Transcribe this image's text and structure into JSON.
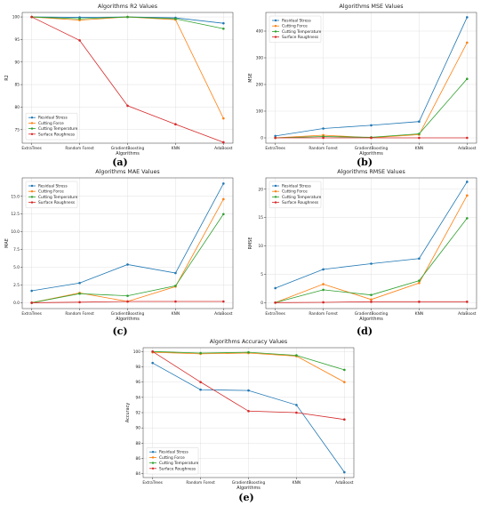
{
  "colors": {
    "s1": "#1f77b4",
    "s2": "#ff7f0e",
    "s3": "#2ca02c",
    "s4": "#d62728"
  },
  "chart_data": [
    {
      "type": "line",
      "caption": "(a)",
      "title": "Algorithms R2 Values",
      "xlabel": "Algorithms",
      "ylabel": "R2",
      "categories": [
        "ExtraTrees",
        "Random Forest",
        "GradientBoosting",
        "KNN",
        "AdaBoost"
      ],
      "ylim": [
        72,
        101
      ],
      "yticks": [
        75,
        80,
        85,
        90,
        95,
        100
      ],
      "yticklabels": [
        "75",
        "80",
        "85",
        "90",
        "95",
        "100"
      ],
      "grid": true,
      "legend": "bottom-left",
      "series": [
        {
          "name": "Residual Stress",
          "values": [
            100,
            99.9,
            100,
            99.8,
            98.6
          ]
        },
        {
          "name": "Cutting Force",
          "values": [
            100,
            99.3,
            100,
            99.4,
            77.5
          ]
        },
        {
          "name": "Cutting Temperature",
          "values": [
            100,
            99.6,
            100,
            99.6,
            97.4
          ]
        },
        {
          "name": "Surface Roughness",
          "values": [
            100,
            94.8,
            80.3,
            76.2,
            72.2
          ]
        }
      ]
    },
    {
      "type": "line",
      "caption": "(b)",
      "title": "Algorithms MSE Values",
      "xlabel": "Algorithms",
      "ylabel": "MSE",
      "categories": [
        "ExtraTrees",
        "Random Forest",
        "GradientBoosting",
        "KNN",
        "AdaBoost"
      ],
      "ylim": [
        -20,
        470
      ],
      "yticks": [
        0,
        100,
        200,
        300,
        400
      ],
      "yticklabels": [
        "0",
        "100",
        "200",
        "300",
        "400"
      ],
      "grid": true,
      "legend": "top-left",
      "series": [
        {
          "name": "Residual Stress",
          "values": [
            7,
            35,
            47,
            61,
            452
          ]
        },
        {
          "name": "Cutting Force",
          "values": [
            0,
            10,
            0.5,
            12,
            357
          ]
        },
        {
          "name": "Cutting Temperature",
          "values": [
            0,
            5,
            2,
            15,
            221
          ]
        },
        {
          "name": "Surface Roughness",
          "values": [
            0,
            0,
            0,
            0,
            0
          ]
        }
      ]
    },
    {
      "type": "line",
      "caption": "(c)",
      "title": "Algorithms MAE Values",
      "xlabel": "Algorithms",
      "ylabel": "MAE",
      "categories": [
        "ExtraTrees",
        "Random Forest",
        "GradientBoosting",
        "KNN",
        "AdaBoost"
      ],
      "ylim": [
        -0.8,
        17.6
      ],
      "yticks": [
        0,
        2.5,
        5,
        7.5,
        10,
        12.5,
        15
      ],
      "yticklabels": [
        "0.0",
        "2.5",
        "5.0",
        "7.5",
        "10.0",
        "12.5",
        "15.0"
      ],
      "grid": true,
      "legend": "top-left",
      "series": [
        {
          "name": "Residual Stress",
          "values": [
            1.7,
            2.8,
            5.4,
            4.2,
            16.8
          ]
        },
        {
          "name": "Cutting Force",
          "values": [
            0.02,
            1.4,
            0.2,
            2.3,
            14.6
          ]
        },
        {
          "name": "Cutting Temperature",
          "values": [
            0.02,
            1.3,
            1.0,
            2.4,
            12.5
          ]
        },
        {
          "name": "Surface Roughness",
          "values": [
            0.02,
            0.1,
            0.2,
            0.2,
            0.2
          ]
        }
      ]
    },
    {
      "type": "line",
      "caption": "(d)",
      "title": "Algorithms RMSE Values",
      "xlabel": "Algorithms",
      "ylabel": "RMSE",
      "categories": [
        "ExtraTrees",
        "Random Forest",
        "GradientBoosting",
        "KNN",
        "AdaBoost"
      ],
      "ylim": [
        -1,
        22
      ],
      "yticks": [
        0,
        5,
        10,
        15,
        20
      ],
      "yticklabels": [
        "0",
        "5",
        "10",
        "15",
        "20"
      ],
      "grid": true,
      "legend": "top-left",
      "series": [
        {
          "name": "Residual Stress",
          "values": [
            2.6,
            5.9,
            6.9,
            7.8,
            21.3
          ]
        },
        {
          "name": "Cutting Force",
          "values": [
            0.05,
            3.3,
            0.6,
            3.5,
            18.9
          ]
        },
        {
          "name": "Cutting Temperature",
          "values": [
            0.05,
            2.3,
            1.4,
            3.9,
            14.9
          ]
        },
        {
          "name": "Surface Roughness",
          "values": [
            0.05,
            0.1,
            0.2,
            0.2,
            0.2
          ]
        }
      ]
    },
    {
      "type": "line",
      "caption": "(e)",
      "title": "Algorithms Accuracy Values",
      "xlabel": "Algorithms",
      "ylabel": "Accuracy",
      "categories": [
        "ExtraTrees",
        "Random Forest",
        "GradientBoosting",
        "KNN",
        "AdaBoost"
      ],
      "ylim": [
        83.5,
        100.5
      ],
      "yticks": [
        84,
        86,
        88,
        90,
        92,
        94,
        96,
        98,
        100
      ],
      "yticklabels": [
        "84",
        "86",
        "88",
        "90",
        "92",
        "94",
        "96",
        "98",
        "100"
      ],
      "grid": true,
      "legend": "bottom-left",
      "series": [
        {
          "name": "Residual Stress",
          "values": [
            98.5,
            95.0,
            94.9,
            93.0,
            84.2
          ]
        },
        {
          "name": "Cutting Force",
          "values": [
            99.9,
            99.7,
            99.8,
            99.4,
            96.0
          ]
        },
        {
          "name": "Cutting Temperature",
          "values": [
            100,
            99.8,
            99.9,
            99.5,
            97.6
          ]
        },
        {
          "name": "Surface Roughness",
          "values": [
            100,
            96.0,
            92.2,
            92.0,
            91.1
          ]
        }
      ]
    }
  ]
}
